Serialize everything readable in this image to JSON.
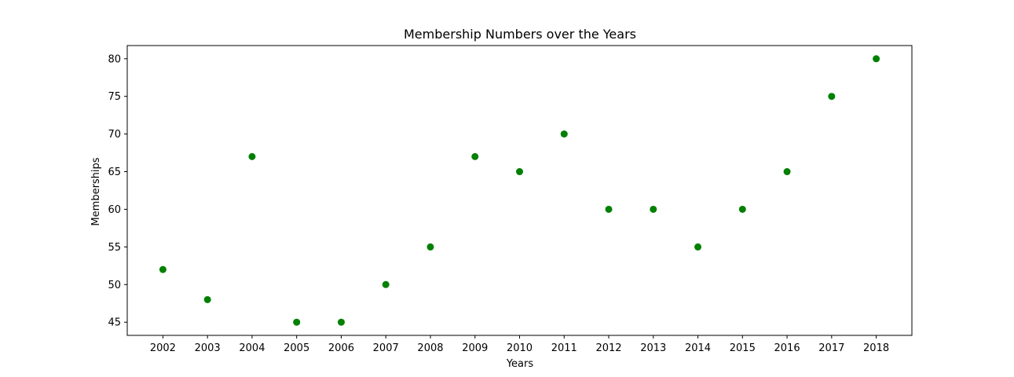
{
  "chart_data": {
    "type": "scatter",
    "title": "Membership Numbers over the Years",
    "xlabel": "Years",
    "ylabel": "Memberships",
    "x": [
      2002,
      2003,
      2004,
      2005,
      2006,
      2007,
      2008,
      2009,
      2010,
      2011,
      2012,
      2013,
      2014,
      2015,
      2016,
      2017,
      2018
    ],
    "y": [
      52,
      48,
      67,
      45,
      45,
      50,
      55,
      67,
      65,
      70,
      60,
      60,
      55,
      60,
      65,
      75,
      80
    ],
    "x_ticks": [
      "2002",
      "2003",
      "2004",
      "2005",
      "2006",
      "2007",
      "2008",
      "2009",
      "2010",
      "2011",
      "2012",
      "2013",
      "2014",
      "2015",
      "2016",
      "2017",
      "2018"
    ],
    "y_ticks": [
      "45",
      "50",
      "55",
      "60",
      "65",
      "70",
      "75",
      "80"
    ],
    "xlim": [
      2001.2,
      2018.8
    ],
    "ylim": [
      43.25,
      81.75
    ],
    "grid": false,
    "marker_color": "#008000"
  }
}
